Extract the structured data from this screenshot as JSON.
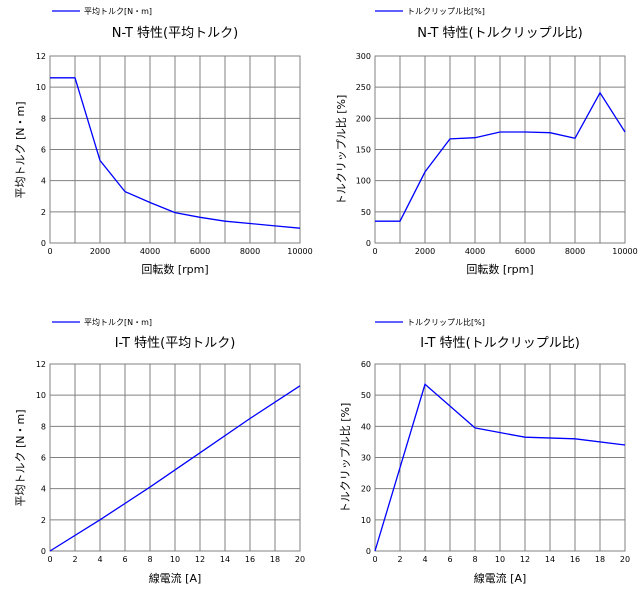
{
  "charts": [
    {
      "legend": "平均トルク[N・m]",
      "title": "N-T 特性(平均トルク)",
      "xlabel": "回転数 [rpm]",
      "ylabel": "平均トルク [N・m]",
      "xticks": [
        "0",
        "2000",
        "4000",
        "6000",
        "8000",
        "10000"
      ],
      "yticks": [
        "0",
        "2",
        "4",
        "6",
        "8",
        "10",
        "12"
      ]
    },
    {
      "legend": "トルクリップル比[%]",
      "title": "N-T 特性(トルクリップル比)",
      "xlabel": "回転数 [rpm]",
      "ylabel": "トルクリップル比 [%]",
      "xticks": [
        "0",
        "2000",
        "4000",
        "6000",
        "8000",
        "10000"
      ],
      "yticks": [
        "0",
        "50",
        "100",
        "150",
        "200",
        "250",
        "300"
      ]
    },
    {
      "legend": "平均トルク[N・m]",
      "title": "I-T 特性(平均トルク)",
      "xlabel": "線電流 [A]",
      "ylabel": "平均トルク [N・m]",
      "xticks": [
        "0",
        "2",
        "4",
        "6",
        "8",
        "10",
        "12",
        "14",
        "16",
        "18",
        "20"
      ],
      "yticks": [
        "0",
        "2",
        "4",
        "6",
        "8",
        "10",
        "12"
      ]
    },
    {
      "legend": "トルクリップル比[%]",
      "title": "I-T 特性(トルクリップル比)",
      "xlabel": "線電流 [A]",
      "ylabel": "トルクリップル比 [%]",
      "xticks": [
        "0",
        "2",
        "4",
        "6",
        "8",
        "10",
        "12",
        "14",
        "16",
        "18",
        "20"
      ],
      "yticks": [
        "0",
        "10",
        "20",
        "30",
        "40",
        "50",
        "60"
      ]
    }
  ],
  "chart_data": [
    {
      "type": "line",
      "title": "N-T 特性(平均トルク)",
      "xlabel": "回転数 [rpm]",
      "ylabel": "平均トルク [N・m]",
      "xlim": [
        0,
        10000
      ],
      "ylim": [
        0,
        12
      ],
      "grid": true,
      "legend_position": "top-left",
      "series": [
        {
          "name": "平均トルク[N・m]",
          "color": "#0000ff",
          "x": [
            0,
            1000,
            2000,
            3000,
            4000,
            5000,
            6000,
            7000,
            8000,
            9000,
            10000
          ],
          "y": [
            10.6,
            10.6,
            5.3,
            3.3,
            2.6,
            1.95,
            1.65,
            1.4,
            1.25,
            1.1,
            0.95
          ]
        }
      ]
    },
    {
      "type": "line",
      "title": "N-T 特性(トルクリップル比)",
      "xlabel": "回転数 [rpm]",
      "ylabel": "トルクリップル比 [%]",
      "xlim": [
        0,
        10000
      ],
      "ylim": [
        0,
        300
      ],
      "grid": true,
      "legend_position": "top-left",
      "series": [
        {
          "name": "トルクリップル比[%]",
          "color": "#0000ff",
          "x": [
            0,
            1000,
            2000,
            3000,
            4000,
            5000,
            6000,
            7000,
            8000,
            9000,
            10000
          ],
          "y": [
            35,
            35,
            114,
            167,
            169,
            178,
            178,
            177,
            168,
            241,
            178
          ]
        }
      ]
    },
    {
      "type": "line",
      "title": "I-T 特性(平均トルク)",
      "xlabel": "線電流 [A]",
      "ylabel": "平均トルク [N・m]",
      "xlim": [
        0,
        20
      ],
      "ylim": [
        0,
        12
      ],
      "grid": true,
      "legend_position": "top-left",
      "series": [
        {
          "name": "平均トルク[N・m]",
          "color": "#0000ff",
          "x": [
            0,
            4,
            8,
            12,
            16,
            20
          ],
          "y": [
            0,
            2.0,
            4.1,
            6.3,
            8.5,
            10.6
          ]
        }
      ]
    },
    {
      "type": "line",
      "title": "I-T 特性(トルクリップル比)",
      "xlabel": "線電流 [A]",
      "ylabel": "トルクリップル比 [%]",
      "xlim": [
        0,
        20
      ],
      "ylim": [
        0,
        60
      ],
      "grid": true,
      "legend_position": "top-left",
      "series": [
        {
          "name": "トルクリップル比[%]",
          "color": "#0000ff",
          "x": [
            0,
            4,
            8,
            12,
            16,
            20
          ],
          "y": [
            0,
            53.5,
            39.5,
            36.5,
            36,
            34
          ]
        }
      ]
    }
  ]
}
